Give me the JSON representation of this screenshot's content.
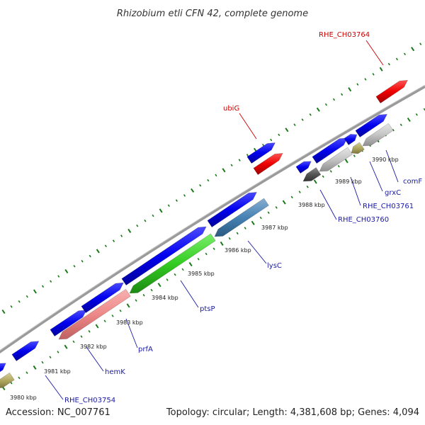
{
  "title": "Rhizobium etli CFN 42, complete genome",
  "footer": {
    "accession": "Accession: NC_007761",
    "summary": "Topology: circular; Length: 4,381,608 bp; Genes: 4,094"
  },
  "colors": {
    "forward_gene": "#0000ee",
    "rna_gene": "#ee0000",
    "label_reverse": "#1a1aa6",
    "label_rna": "#cc0000",
    "backbone": "#888888",
    "tick": "#1a7a1a"
  },
  "kbp_marks": [
    "3980 kbp",
    "3981 kbp",
    "3982 kbp",
    "3983 kbp",
    "3984 kbp",
    "3985 kbp",
    "3986 kbp",
    "3987 kbp",
    "3988 kbp",
    "3989 kbp",
    "3990 kbp"
  ],
  "gene_labels": [
    {
      "name": "RHE_CH03764",
      "type": "rna"
    },
    {
      "name": "ubiG",
      "type": "rna"
    },
    {
      "name": "comF",
      "type": "reverse"
    },
    {
      "name": "grxC",
      "type": "reverse"
    },
    {
      "name": "RHE_CH03761",
      "type": "reverse"
    },
    {
      "name": "RHE_CH03760",
      "type": "reverse"
    },
    {
      "name": "lysC",
      "type": "reverse"
    },
    {
      "name": "ptsP",
      "type": "reverse"
    },
    {
      "name": "prfA",
      "type": "reverse"
    },
    {
      "name": "hemK",
      "type": "reverse"
    },
    {
      "name": "RHE_CH03754",
      "type": "reverse"
    }
  ]
}
